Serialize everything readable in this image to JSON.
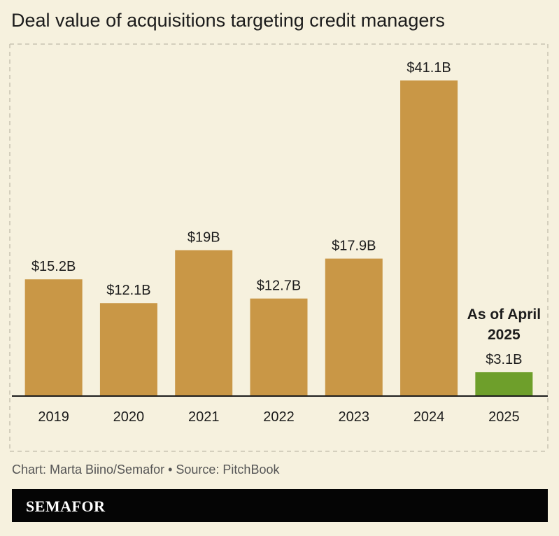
{
  "title": "Deal value of acquisitions targeting credit managers",
  "credit": "Chart: Marta Biino/Semafor • Source: PitchBook",
  "logo": "SEMAFOR",
  "colors": {
    "background": "#f6f1de",
    "bar": "#c99746",
    "highlight_bar": "#6e9f2b",
    "axis": "#1c1c1c",
    "grid": "#c9c4b2"
  },
  "chart_data": {
    "type": "bar",
    "title": "Deal value of acquisitions targeting credit managers",
    "xlabel": "",
    "ylabel": "",
    "categories": [
      "2019",
      "2020",
      "2021",
      "2022",
      "2023",
      "2024",
      "2025"
    ],
    "values": [
      15.2,
      12.1,
      19,
      12.7,
      17.9,
      41.1,
      3.1
    ],
    "value_labels": [
      "$15.2B",
      "$12.1B",
      "$19B",
      "$12.7B",
      "$17.9B",
      "$41.1B",
      "$3.1B"
    ],
    "highlight_index": 6,
    "annotation": {
      "category": "2025",
      "lines": [
        "As of April",
        "2025"
      ]
    },
    "ylim": [
      0,
      41.1
    ],
    "grid": false
  }
}
